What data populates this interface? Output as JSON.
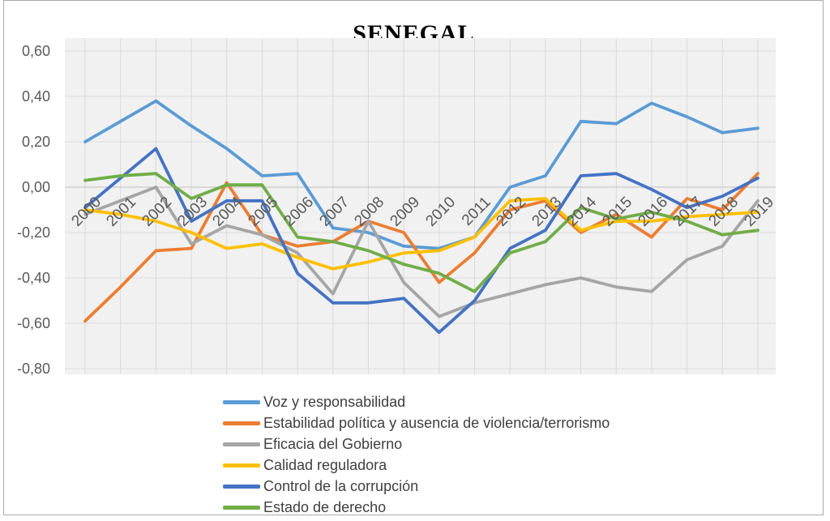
{
  "title": "SENEGAL",
  "colors": {
    "plot_bg": "#f1f1f1",
    "grid": "#d9d9d9",
    "zero_axis": "#bfbfbf",
    "axis_text": "#595959",
    "legend_text": "#3f3f3f",
    "frame_border": "#ababab"
  },
  "chart_data": {
    "type": "line",
    "title": "SENEGAL",
    "x_labels": [
      "2000",
      "2001",
      "2002",
      "2003",
      "2004",
      "2005",
      "2006",
      "2007",
      "2008",
      "2009",
      "2010",
      "2011",
      "2012",
      "2013",
      "2014",
      "2015",
      "2016",
      "2017",
      "2018",
      "2019"
    ],
    "ylim": [
      -0.8,
      0.6
    ],
    "ytick_values": [
      0.6,
      0.4,
      0.2,
      0.0,
      -0.2,
      -0.4,
      -0.6,
      -0.8
    ],
    "ytick_labels": [
      "0,60",
      "0,40",
      "0,20",
      "0,00",
      "-0,20",
      "-0,40",
      "-0,60",
      "-0,80"
    ],
    "grid": true,
    "legend_position": "bottom-left",
    "series": [
      {
        "name": "Voz y responsabilidad",
        "slug": "voz-y-responsabilidad",
        "color": "#5B9BD5",
        "values": [
          0.2,
          0.29,
          0.38,
          0.27,
          0.17,
          0.05,
          0.06,
          -0.18,
          -0.2,
          -0.26,
          -0.27,
          -0.22,
          0.0,
          0.05,
          0.29,
          0.28,
          0.37,
          0.31,
          0.24,
          0.26
        ]
      },
      {
        "name": "Estabilidad política y ausencia de violencia/terrorismo",
        "slug": "estabilidad-politica",
        "color": "#ED7D31",
        "values": [
          -0.59,
          -0.44,
          -0.28,
          -0.27,
          0.02,
          -0.21,
          -0.26,
          -0.24,
          -0.15,
          -0.2,
          -0.42,
          -0.29,
          -0.1,
          -0.06,
          -0.2,
          -0.12,
          -0.22,
          -0.05,
          -0.1,
          0.06
        ]
      },
      {
        "name": "Eficacia del Gobierno",
        "slug": "eficacia-del-gobierno",
        "color": "#A5A5A5",
        "values": [
          -0.12,
          -0.06,
          0.0,
          -0.25,
          -0.17,
          -0.21,
          -0.29,
          -0.47,
          -0.15,
          -0.42,
          -0.57,
          -0.51,
          -0.47,
          -0.43,
          -0.4,
          -0.44,
          -0.46,
          -0.32,
          -0.26,
          -0.06
        ]
      },
      {
        "name": "Calidad reguladora",
        "slug": "calidad-reguladora",
        "color": "#FFC000",
        "values": [
          -0.1,
          -0.12,
          -0.15,
          -0.2,
          -0.27,
          -0.25,
          -0.31,
          -0.36,
          -0.33,
          -0.29,
          -0.28,
          -0.22,
          -0.06,
          -0.05,
          -0.19,
          -0.15,
          -0.15,
          -0.13,
          -0.12,
          -0.11
        ]
      },
      {
        "name": "Control de la corrupción",
        "slug": "control-de-la-corrupcion",
        "color": "#4472C4",
        "values": [
          -0.09,
          0.04,
          0.17,
          -0.15,
          -0.06,
          -0.06,
          -0.38,
          -0.51,
          -0.51,
          -0.49,
          -0.64,
          -0.5,
          -0.27,
          -0.19,
          0.05,
          0.06,
          -0.01,
          -0.09,
          -0.04,
          0.04
        ]
      },
      {
        "name": "Estado de derecho",
        "slug": "estado-de-derecho",
        "color": "#70AD47",
        "values": [
          0.03,
          0.05,
          0.06,
          -0.05,
          0.01,
          0.01,
          -0.22,
          -0.24,
          -0.28,
          -0.34,
          -0.38,
          -0.46,
          -0.29,
          -0.24,
          -0.09,
          -0.14,
          -0.11,
          -0.15,
          -0.21,
          -0.19
        ]
      }
    ]
  }
}
